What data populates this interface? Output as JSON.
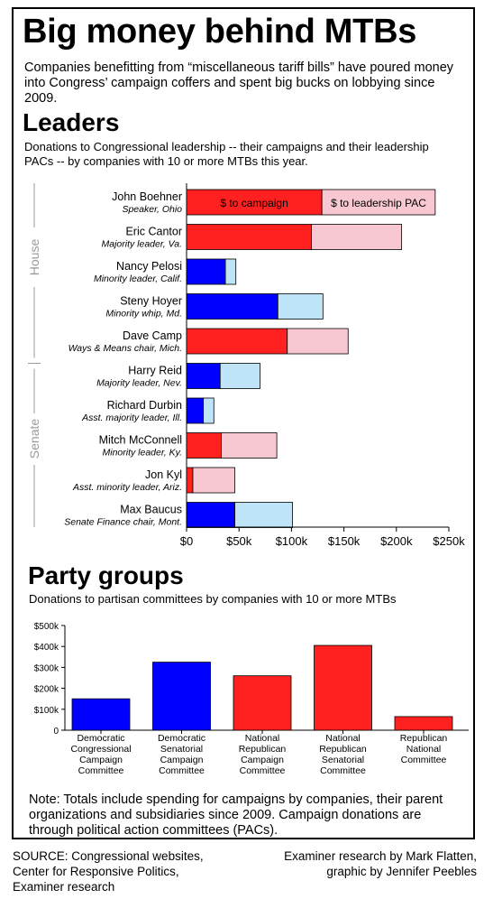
{
  "title": "Big money behind MTBs",
  "intro": "Companies benefitting from “miscellaneous tariff bills” have poured money into Congress’ campaign coffers and spent big bucks on lobbying since 2009.",
  "leaders": {
    "heading": "Leaders",
    "subtitle": "Donations to Congressional leadership  -- their campaigns and their leadership PACs -- by companies with 10 or more MTBs this year.",
    "group_labels": [
      "House",
      "Senate"
    ]
  },
  "party": {
    "heading": "Party groups",
    "subtitle": "Donations to partisan committees by companies with 10 or more MTBs"
  },
  "colors": {
    "dem_campaign": "#0000ff",
    "dem_pac": "#bfe4f7",
    "rep_campaign": "#ff2020",
    "rep_pac": "#f8c8d2",
    "group_label": "#9a9a9a"
  },
  "chart_data": [
    {
      "type": "bar",
      "orientation": "horizontal",
      "stacked": true,
      "xlim": [
        0,
        250000
      ],
      "xticks": [
        0,
        50000,
        100000,
        150000,
        200000,
        250000
      ],
      "xtick_labels": [
        "$0",
        "$50k",
        "$100k",
        "$150k",
        "$200k",
        "$250k"
      ],
      "series_labels": [
        "$ to campaign",
        "$ to leadership PAC"
      ],
      "categories": [
        {
          "name": "John Boehner",
          "role": "Speaker, Ohio",
          "party": "R",
          "chamber": "House"
        },
        {
          "name": "Eric Cantor",
          "role": "Majority leader, Va.",
          "party": "R",
          "chamber": "House"
        },
        {
          "name": "Nancy Pelosi",
          "role": "Minority leader, Calif.",
          "party": "D",
          "chamber": "House"
        },
        {
          "name": "Steny Hoyer",
          "role": "Minority whip, Md.",
          "party": "D",
          "chamber": "House"
        },
        {
          "name": "Dave Camp",
          "role": "Ways & Means chair, Mich.",
          "party": "R",
          "chamber": "House"
        },
        {
          "name": "Harry Reid",
          "role": "Majority leader, Nev.",
          "party": "D",
          "chamber": "Senate"
        },
        {
          "name": "Richard Durbin",
          "role": "Asst. majority leader, Ill.",
          "party": "D",
          "chamber": "Senate"
        },
        {
          "name": "Mitch McConnell",
          "role": "Minority leader, Ky.",
          "party": "R",
          "chamber": "Senate"
        },
        {
          "name": "Jon Kyl",
          "role": "Asst. minority leader, Ariz.",
          "party": "R",
          "chamber": "Senate"
        },
        {
          "name": "Max Baucus",
          "role": "Senate Finance chair, Mont.",
          "party": "D",
          "chamber": "Senate"
        }
      ],
      "series": [
        {
          "name": "$ to campaign",
          "values": [
            129000,
            119000,
            37000,
            87000,
            96000,
            32000,
            16000,
            33000,
            6000,
            46000
          ]
        },
        {
          "name": "$ to leadership PAC",
          "values": [
            108000,
            86000,
            10000,
            43000,
            58000,
            38000,
            10000,
            53000,
            40000,
            55000
          ]
        }
      ]
    },
    {
      "type": "bar",
      "ylim": [
        0,
        500000
      ],
      "yticks": [
        0,
        100000,
        200000,
        300000,
        400000,
        500000
      ],
      "ytick_labels": [
        "0",
        "$100k",
        "$200k",
        "$300k",
        "$400k",
        "$500k"
      ],
      "categories": [
        {
          "label": [
            "Democratic",
            "Congressional",
            "Campaign",
            "Committee"
          ],
          "party": "D"
        },
        {
          "label": [
            "Democratic",
            "Senatorial",
            "Campaign",
            "Committee"
          ],
          "party": "D"
        },
        {
          "label": [
            "National",
            "Republican",
            "Campaign",
            "Committee"
          ],
          "party": "R"
        },
        {
          "label": [
            "National",
            "Republican",
            "Senatorial",
            "Committee"
          ],
          "party": "R"
        },
        {
          "label": [
            "Republican",
            "National",
            "Committee"
          ],
          "party": "R"
        }
      ],
      "values": [
        150000,
        325000,
        260000,
        405000,
        65000
      ]
    }
  ],
  "note": "Note: Totals include spending for campaigns by companies, their parent organizations and subsidiaries since 2009. Campaign donations are through political action committees (PACs).",
  "source": [
    "SOURCE: Congressional websites,",
    "Center for Responsive Politics,",
    "Examiner research"
  ],
  "credit": [
    "Examiner research by Mark Flatten,",
    "graphic by Jennifer Peebles"
  ]
}
